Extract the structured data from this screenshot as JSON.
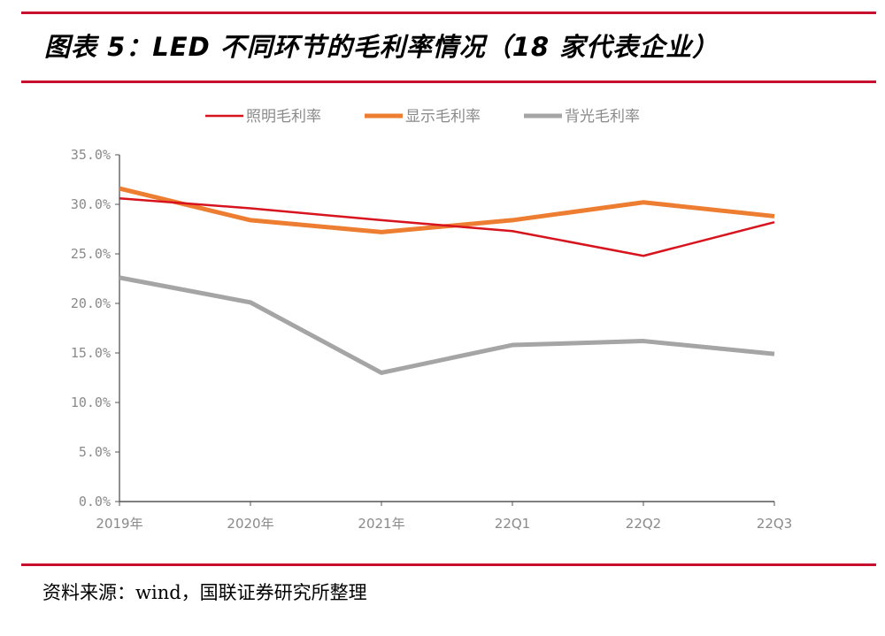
{
  "header": {
    "title": "图表 5：LED 不同环节的毛利率情况（18 家代表企业）"
  },
  "footer": {
    "source": "资料来源：wind，国联证券研究所整理"
  },
  "colors": {
    "rule": "#C8102E",
    "axis": "#8f8f8f"
  },
  "chart_data": {
    "type": "line",
    "title": "LED 不同环节的毛利率情况（18 家代表企业）",
    "xlabel": "",
    "ylabel": "",
    "categories": [
      "2019年",
      "2020年",
      "2021年",
      "22Q1",
      "22Q2",
      "22Q3"
    ],
    "y_ticks": [
      "0.0%",
      "5.0%",
      "10.0%",
      "15.0%",
      "20.0%",
      "25.0%",
      "30.0%",
      "35.0%"
    ],
    "ylim": [
      0,
      35
    ],
    "y_unit": "%",
    "grid": false,
    "legend_position": "top",
    "series": [
      {
        "name": "照明毛利率",
        "color": "#D7141E",
        "values": [
          30.6,
          29.6,
          28.4,
          27.3,
          24.8,
          28.2
        ]
      },
      {
        "name": "显示毛利率",
        "color": "#ED7D31",
        "values": [
          31.6,
          28.4,
          27.2,
          28.4,
          30.2,
          28.8
        ]
      },
      {
        "name": "背光毛利率",
        "color": "#A5A5A5",
        "values": [
          22.6,
          20.1,
          13.0,
          15.8,
          16.2,
          14.9
        ]
      }
    ]
  }
}
